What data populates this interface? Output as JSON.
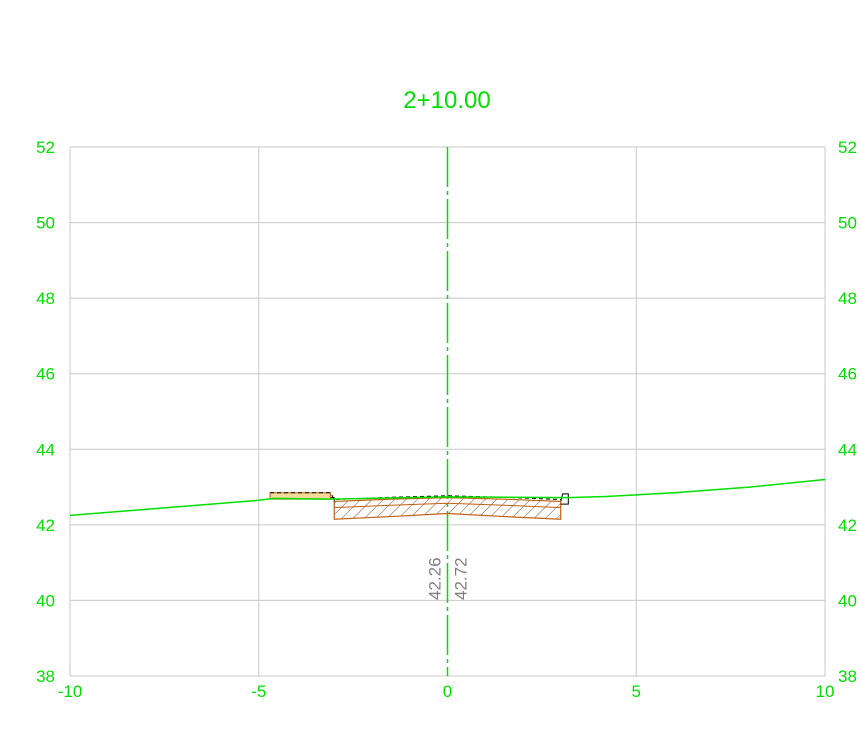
{
  "chart_data": {
    "type": "line",
    "title": "2+10.00",
    "xlim": [
      -10,
      10
    ],
    "ylim": [
      38,
      52
    ],
    "x_ticks": [
      -10,
      -5,
      0,
      5,
      10
    ],
    "y_ticks": [
      38,
      40,
      42,
      44,
      46,
      48,
      50,
      52
    ],
    "x_tick_labels": [
      "-10",
      "-5",
      "0",
      "5",
      "10"
    ],
    "y_tick_labels": [
      "38",
      "40",
      "42",
      "44",
      "46",
      "48",
      "50",
      "52"
    ],
    "grid": true,
    "centerline_x": 0,
    "series": [
      {
        "color": "#00e000",
        "x": [
          -10,
          -7.5,
          -5,
          -4.6,
          -3.1,
          0,
          3.2,
          4.2,
          6,
          8,
          10
        ],
        "y": [
          42.25,
          42.45,
          42.65,
          42.7,
          42.68,
          42.74,
          42.72,
          42.75,
          42.85,
          43.0,
          43.2
        ]
      }
    ],
    "design_section": {
      "top_x": [
        -3,
        -1.5,
        0,
        1.5,
        3
      ],
      "top_y": [
        42.62,
        42.68,
        42.72,
        42.68,
        42.62
      ],
      "bottom_y": [
        42.15,
        42.22,
        42.3,
        42.22,
        42.15
      ],
      "fill_color": "#c06010"
    },
    "left_strip": {
      "x": [
        -4.7,
        -3.1
      ],
      "y_top": 42.85,
      "y_bottom": 42.68
    },
    "annotations": [
      {
        "text": "42.26",
        "x": -0.35,
        "y": 39.8
      },
      {
        "text": "42.72",
        "x": 0.35,
        "y": 39.8
      }
    ]
  }
}
